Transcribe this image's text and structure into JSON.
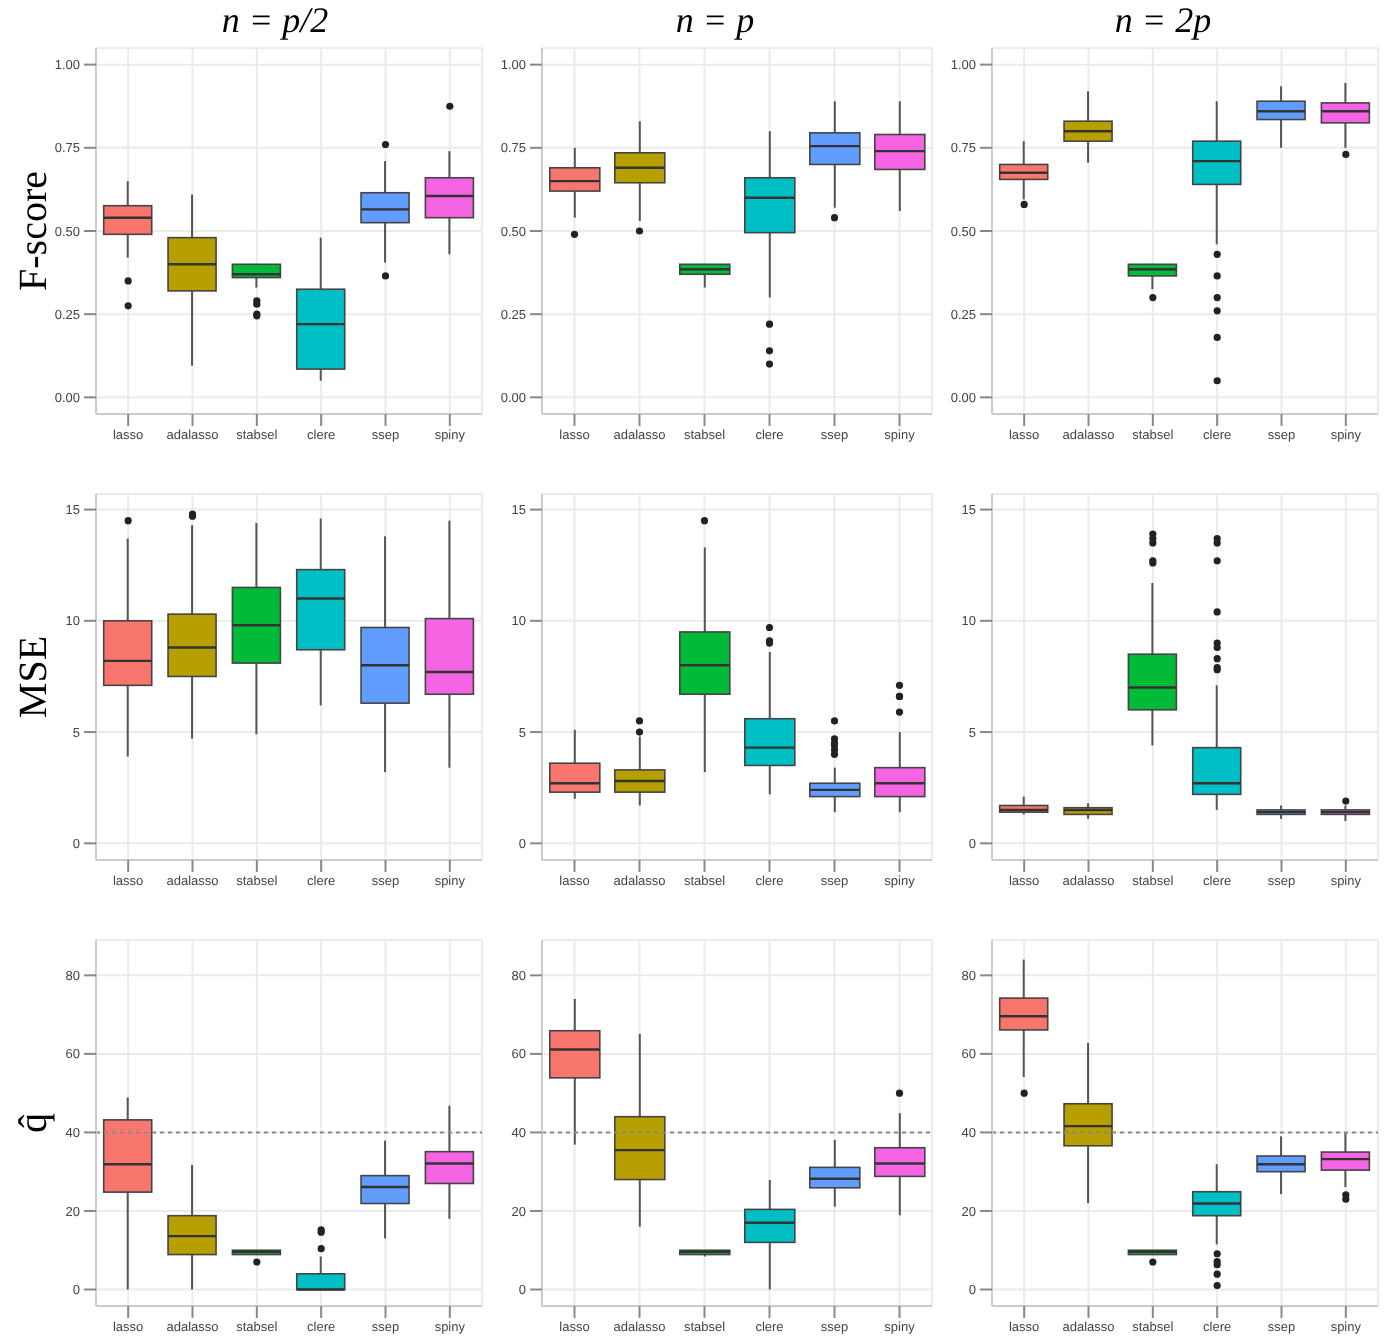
{
  "chart_data": [
    {
      "type": "box",
      "title": "n = p/2",
      "ylabel": "F-score",
      "categories": [
        "lasso",
        "adalasso",
        "stabsel",
        "clere",
        "ssep",
        "spiny"
      ],
      "colors": [
        "#f8766d",
        "#b79f00",
        "#00ba38",
        "#00bfc4",
        "#619cff",
        "#f564e3"
      ],
      "ylim": [
        -0.05,
        1.05
      ],
      "yticks": [
        {
          "value": 0,
          "label": "0.00"
        },
        0.25,
        {
          "value": 0.5,
          "label": "0.50"
        },
        0.75,
        {
          "value": 1,
          "label": "1.00"
        }
      ],
      "grid": true,
      "boxes": [
        {
          "low": 0.42,
          "q1": 0.49,
          "median": 0.54,
          "q3": 0.576,
          "high": 0.65,
          "outliers": [
            0.35,
            0.275
          ]
        },
        {
          "low": 0.095,
          "q1": 0.32,
          "median": 0.4,
          "q3": 0.48,
          "high": 0.61
        },
        {
          "low": 0.33,
          "q1": 0.36,
          "median": 0.37,
          "q3": 0.4,
          "high": 0.4,
          "outliers": [
            0.29,
            0.28,
            0.25,
            0.245
          ]
        },
        {
          "low": 0.05,
          "q1": 0.085,
          "median": 0.22,
          "q3": 0.325,
          "high": 0.48
        },
        {
          "low": 0.405,
          "q1": 0.525,
          "median": 0.565,
          "q3": 0.615,
          "high": 0.71,
          "outliers": [
            0.76,
            0.365
          ]
        },
        {
          "low": 0.43,
          "q1": 0.54,
          "median": 0.605,
          "q3": 0.66,
          "high": 0.74,
          "outliers": [
            0.875
          ]
        }
      ]
    },
    {
      "type": "box",
      "title": "n = p",
      "categories": [
        "lasso",
        "adalasso",
        "stabsel",
        "clere",
        "ssep",
        "spiny"
      ],
      "colors": [
        "#f8766d",
        "#b79f00",
        "#00ba38",
        "#00bfc4",
        "#619cff",
        "#f564e3"
      ],
      "ylim": [
        -0.05,
        1.05
      ],
      "yticks": [
        {
          "value": 0,
          "label": "0.00"
        },
        0.25,
        {
          "value": 0.5,
          "label": "0.50"
        },
        0.75,
        {
          "value": 1,
          "label": "1.00"
        }
      ],
      "grid": true,
      "boxes": [
        {
          "low": 0.54,
          "q1": 0.62,
          "median": 0.65,
          "q3": 0.69,
          "high": 0.75,
          "outliers": [
            0.49
          ]
        },
        {
          "low": 0.53,
          "q1": 0.645,
          "median": 0.69,
          "q3": 0.735,
          "high": 0.83,
          "outliers": [
            0.5
          ]
        },
        {
          "low": 0.33,
          "q1": 0.37,
          "median": 0.385,
          "q3": 0.4,
          "high": 0.4
        },
        {
          "low": 0.3,
          "q1": 0.495,
          "median": 0.6,
          "q3": 0.66,
          "high": 0.8,
          "outliers": [
            0.22,
            0.14,
            0.1
          ]
        },
        {
          "low": 0.57,
          "q1": 0.7,
          "median": 0.755,
          "q3": 0.795,
          "high": 0.89,
          "outliers": [
            0.54
          ]
        },
        {
          "low": 0.56,
          "q1": 0.685,
          "median": 0.74,
          "q3": 0.79,
          "high": 0.89
        }
      ]
    },
    {
      "type": "box",
      "title": "n = 2p",
      "categories": [
        "lasso",
        "adalasso",
        "stabsel",
        "clere",
        "ssep",
        "spiny"
      ],
      "colors": [
        "#f8766d",
        "#b79f00",
        "#00ba38",
        "#00bfc4",
        "#619cff",
        "#f564e3"
      ],
      "ylim": [
        -0.05,
        1.05
      ],
      "yticks": [
        {
          "value": 0,
          "label": "0.00"
        },
        0.25,
        {
          "value": 0.5,
          "label": "0.50"
        },
        0.75,
        {
          "value": 1,
          "label": "1.00"
        }
      ],
      "grid": true,
      "boxes": [
        {
          "low": 0.595,
          "q1": 0.655,
          "median": 0.675,
          "q3": 0.7,
          "high": 0.77,
          "outliers": [
            0.58
          ]
        },
        {
          "low": 0.705,
          "q1": 0.77,
          "median": 0.8,
          "q3": 0.83,
          "high": 0.92
        },
        {
          "low": 0.325,
          "q1": 0.365,
          "median": 0.385,
          "q3": 0.4,
          "high": 0.4,
          "outliers": [
            0.3
          ]
        },
        {
          "low": 0.46,
          "q1": 0.64,
          "median": 0.71,
          "q3": 0.77,
          "high": 0.89,
          "outliers": [
            0.43,
            0.365,
            0.3,
            0.26,
            0.18,
            0.05
          ]
        },
        {
          "low": 0.75,
          "q1": 0.835,
          "median": 0.86,
          "q3": 0.89,
          "high": 0.935
        },
        {
          "low": 0.75,
          "q1": 0.825,
          "median": 0.86,
          "q3": 0.885,
          "high": 0.945,
          "outliers": [
            0.73
          ]
        }
      ]
    },
    {
      "type": "box",
      "ylabel": "MSE",
      "categories": [
        "lasso",
        "adalasso",
        "stabsel",
        "clere",
        "ssep",
        "spiny"
      ],
      "colors": [
        "#f8766d",
        "#b79f00",
        "#00ba38",
        "#00bfc4",
        "#619cff",
        "#f564e3"
      ],
      "ylim": [
        -0.75,
        15.7
      ],
      "yticks": [
        0,
        5,
        10,
        15
      ],
      "grid": true,
      "boxes": [
        {
          "low": 3.9,
          "q1": 7.1,
          "median": 8.2,
          "q3": 10.0,
          "high": 13.7,
          "outliers": [
            14.5
          ]
        },
        {
          "low": 4.7,
          "q1": 7.5,
          "median": 8.8,
          "q3": 10.3,
          "high": 14.3,
          "outliers": [
            14.8,
            14.7
          ]
        },
        {
          "low": 4.9,
          "q1": 8.1,
          "median": 9.8,
          "q3": 11.5,
          "high": 14.4
        },
        {
          "low": 6.2,
          "q1": 8.7,
          "median": 11.0,
          "q3": 12.3,
          "high": 14.6
        },
        {
          "low": 3.2,
          "q1": 6.3,
          "median": 8.0,
          "q3": 9.7,
          "high": 13.8
        },
        {
          "low": 3.4,
          "q1": 6.7,
          "median": 7.7,
          "q3": 10.1,
          "high": 14.5
        }
      ]
    },
    {
      "type": "box",
      "categories": [
        "lasso",
        "adalasso",
        "stabsel",
        "clere",
        "ssep",
        "spiny"
      ],
      "colors": [
        "#f8766d",
        "#b79f00",
        "#00ba38",
        "#00bfc4",
        "#619cff",
        "#f564e3"
      ],
      "ylim": [
        -0.75,
        15.7
      ],
      "yticks": [
        0,
        5,
        10,
        15
      ],
      "grid": true,
      "boxes": [
        {
          "low": 2.0,
          "q1": 2.3,
          "median": 2.7,
          "q3": 3.6,
          "high": 5.1
        },
        {
          "low": 1.7,
          "q1": 2.3,
          "median": 2.8,
          "q3": 3.3,
          "high": 4.8,
          "outliers": [
            5.5,
            5.0
          ]
        },
        {
          "low": 3.2,
          "q1": 6.7,
          "median": 8.0,
          "q3": 9.5,
          "high": 13.3,
          "outliers": [
            14.5
          ]
        },
        {
          "low": 2.2,
          "q1": 3.5,
          "median": 4.3,
          "q3": 5.6,
          "high": 8.6,
          "outliers": [
            9.7,
            9.1,
            9.0
          ]
        },
        {
          "low": 1.4,
          "q1": 2.1,
          "median": 2.4,
          "q3": 2.7,
          "high": 3.4,
          "outliers": [
            5.5,
            4.7,
            4.5,
            4.4,
            4.2,
            4.0
          ]
        },
        {
          "low": 1.4,
          "q1": 2.1,
          "median": 2.7,
          "q3": 3.4,
          "high": 5.0,
          "outliers": [
            7.1,
            6.6,
            6.6,
            5.9
          ]
        }
      ]
    },
    {
      "type": "box",
      "categories": [
        "lasso",
        "adalasso",
        "stabsel",
        "clere",
        "ssep",
        "spiny"
      ],
      "colors": [
        "#f8766d",
        "#b79f00",
        "#00ba38",
        "#00bfc4",
        "#619cff",
        "#f564e3"
      ],
      "ylim": [
        -0.75,
        15.7
      ],
      "yticks": [
        0,
        5,
        10,
        15
      ],
      "grid": true,
      "boxes": [
        {
          "low": 1.3,
          "q1": 1.4,
          "median": 1.5,
          "q3": 1.7,
          "high": 2.1
        },
        {
          "low": 1.1,
          "q1": 1.3,
          "median": 1.5,
          "q3": 1.6,
          "high": 1.8
        },
        {
          "low": 4.4,
          "q1": 6.0,
          "median": 7.0,
          "q3": 8.5,
          "high": 11.7,
          "outliers": [
            13.9,
            13.7,
            13.5,
            12.7,
            12.6
          ]
        },
        {
          "low": 1.5,
          "q1": 2.2,
          "median": 2.7,
          "q3": 4.3,
          "high": 7.1,
          "outliers": [
            13.7,
            13.5,
            12.7,
            10.4,
            9.0,
            8.8,
            8.3,
            7.9,
            7.8
          ]
        },
        {
          "low": 1.1,
          "q1": 1.3,
          "median": 1.4,
          "q3": 1.5,
          "high": 1.7
        },
        {
          "low": 1.0,
          "q1": 1.3,
          "median": 1.4,
          "q3": 1.5,
          "high": 1.7,
          "outliers": [
            1.9
          ]
        }
      ]
    },
    {
      "type": "box",
      "ylabel": "q̂",
      "categories": [
        "lasso",
        "adalasso",
        "stabsel",
        "clere",
        "ssep",
        "spiny"
      ],
      "colors": [
        "#f8766d",
        "#b79f00",
        "#00ba38",
        "#00bfc4",
        "#619cff",
        "#f564e3"
      ],
      "ylim": [
        -4.2,
        89
      ],
      "yticks": [
        0,
        20,
        40,
        60,
        80
      ],
      "grid": true,
      "ref_lines": [
        {
          "axis": "y",
          "value": 40,
          "color": "#888888",
          "line_style": "dotted"
        }
      ],
      "boxes": [
        {
          "low": 0,
          "q1": 24.8,
          "median": 31.9,
          "q3": 43.2,
          "high": 48.9
        },
        {
          "low": 0,
          "q1": 8.9,
          "median": 13.6,
          "q3": 18.8,
          "high": 31.7
        },
        {
          "low": 8.9,
          "q1": 8.9,
          "median": 9.6,
          "q3": 10.0,
          "high": 10.0,
          "outliers": [
            7.0
          ]
        },
        {
          "low": 0,
          "q1": 0,
          "median": 0,
          "q3": 4.0,
          "high": 8.4,
          "outliers": [
            10.4,
            14.6,
            15.2
          ]
        },
        {
          "low": 13.0,
          "q1": 21.9,
          "median": 26.1,
          "q3": 29.0,
          "high": 37.9
        },
        {
          "low": 18.0,
          "q1": 27.0,
          "median": 32.1,
          "q3": 35.1,
          "high": 46.8
        }
      ]
    },
    {
      "type": "box",
      "categories": [
        "lasso",
        "adalasso",
        "stabsel",
        "clere",
        "ssep",
        "spiny"
      ],
      "colors": [
        "#f8766d",
        "#b79f00",
        "#00ba38",
        "#00bfc4",
        "#619cff",
        "#f564e3"
      ],
      "ylim": [
        -4.2,
        89
      ],
      "yticks": [
        0,
        20,
        40,
        60,
        80
      ],
      "grid": true,
      "ref_lines": [
        {
          "axis": "y",
          "value": 40,
          "color": "#888888",
          "line_style": "dotted"
        }
      ],
      "boxes": [
        {
          "low": 36.9,
          "q1": 53.9,
          "median": 61.1,
          "q3": 65.9,
          "high": 74.0
        },
        {
          "low": 16.0,
          "q1": 28.0,
          "median": 35.5,
          "q3": 44.0,
          "high": 65.1
        },
        {
          "low": 8.4,
          "q1": 8.9,
          "median": 9.6,
          "q3": 10.0,
          "high": 10.0
        },
        {
          "low": 0,
          "q1": 12.0,
          "median": 17.0,
          "q3": 20.4,
          "high": 27.9
        },
        {
          "low": 21.1,
          "q1": 25.9,
          "median": 28.2,
          "q3": 31.1,
          "high": 38.1
        },
        {
          "low": 18.9,
          "q1": 28.8,
          "median": 32.1,
          "q3": 36.1,
          "high": 44.9,
          "outliers": [
            50.0
          ]
        }
      ]
    },
    {
      "type": "box",
      "categories": [
        "lasso",
        "adalasso",
        "stabsel",
        "clere",
        "ssep",
        "spiny"
      ],
      "colors": [
        "#f8766d",
        "#b79f00",
        "#00ba38",
        "#00bfc4",
        "#619cff",
        "#f564e3"
      ],
      "ylim": [
        -4.2,
        89
      ],
      "yticks": [
        0,
        20,
        40,
        60,
        80
      ],
      "grid": true,
      "ref_lines": [
        {
          "axis": "y",
          "value": 40,
          "color": "#888888",
          "line_style": "dotted"
        }
      ],
      "boxes": [
        {
          "low": 54.1,
          "q1": 66.1,
          "median": 69.6,
          "q3": 74.2,
          "high": 84.0,
          "outliers": [
            50.0
          ]
        },
        {
          "low": 22.0,
          "q1": 36.6,
          "median": 41.6,
          "q3": 47.3,
          "high": 62.8
        },
        {
          "low": 8.9,
          "q1": 8.9,
          "median": 9.6,
          "q3": 10.0,
          "high": 10.0,
          "outliers": [
            7.0
          ]
        },
        {
          "low": 11.5,
          "q1": 18.8,
          "median": 21.9,
          "q3": 24.9,
          "high": 31.9,
          "outliers": [
            9.1,
            7.1,
            6.3,
            3.9,
            1.0
          ]
        },
        {
          "low": 24.3,
          "q1": 30.0,
          "median": 31.9,
          "q3": 34.0,
          "high": 39.0
        },
        {
          "low": 26.1,
          "q1": 30.4,
          "median": 33.2,
          "q3": 35.0,
          "high": 40.0,
          "outliers": [
            24.1,
            23.0
          ]
        }
      ]
    }
  ]
}
